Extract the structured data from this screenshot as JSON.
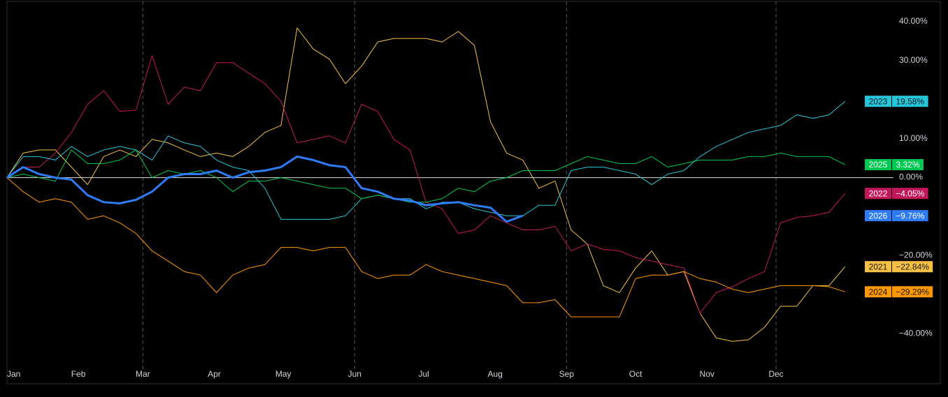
{
  "chart_data": {
    "type": "line",
    "x": [
      0,
      7,
      14,
      21,
      28,
      35,
      42,
      49,
      56,
      63,
      70,
      77,
      84,
      91,
      98,
      105,
      112,
      119,
      126,
      133,
      140,
      147,
      154,
      161,
      168,
      175,
      182,
      189,
      196,
      203,
      210,
      217,
      224,
      231,
      238,
      245,
      252,
      259,
      266,
      273,
      280,
      287,
      294,
      301,
      308,
      315,
      322,
      329,
      336,
      343,
      350,
      357,
      364
    ],
    "xlim": [
      0,
      385
    ],
    "xticks": [
      {
        "value": 0,
        "label": "Jan"
      },
      {
        "value": 31,
        "label": "Feb"
      },
      {
        "value": 59,
        "label": "Mar"
      },
      {
        "value": 90,
        "label": "Apr"
      },
      {
        "value": 120,
        "label": "May"
      },
      {
        "value": 151,
        "label": "Jun"
      },
      {
        "value": 181,
        "label": "Jul"
      },
      {
        "value": 212,
        "label": "Aug"
      },
      {
        "value": 243,
        "label": "Sep"
      },
      {
        "value": 273,
        "label": "Oct"
      },
      {
        "value": 304,
        "label": "Nov"
      },
      {
        "value": 334,
        "label": "Dec"
      }
    ],
    "ylim": [
      -47.5,
      45.2
    ],
    "yticks": [
      {
        "value": 40,
        "label": "40.00%"
      },
      {
        "value": 30,
        "label": "30.00%"
      },
      {
        "value": 10,
        "label": "10.00%"
      },
      {
        "value": 0,
        "label": "0.00%"
      },
      {
        "value": -20,
        "label": "−20.00%"
      },
      {
        "value": -40,
        "label": "−40.00%"
      }
    ],
    "series": [
      {
        "name": "2021",
        "color": "#f6c143",
        "end_value": -22.84,
        "end_label": "−22.84%",
        "values": [
          0,
          6.3,
          7.1,
          7.1,
          2.7,
          -1.8,
          5.4,
          7.1,
          5.4,
          9.8,
          8.9,
          7.1,
          5.4,
          6.3,
          5.4,
          8,
          11.6,
          13.4,
          38.4,
          33,
          30.4,
          24.1,
          28.6,
          34.8,
          35.7,
          35.7,
          35.7,
          34.8,
          37.5,
          33.9,
          14.3,
          6.3,
          4.5,
          -2.7,
          -0.9,
          -13.4,
          -17,
          -27.7,
          -29.5,
          -23.2,
          -18.8,
          -25,
          -24.1,
          -34.8,
          -41.1,
          -42,
          -41.6,
          -38.4,
          -33,
          -33,
          -27.7,
          -27.7,
          -22.84
        ]
      },
      {
        "name": "2022",
        "color": "#c2185b",
        "end_value": -4.05,
        "end_label": "−4.05%",
        "values": [
          0,
          2.7,
          2.7,
          6.3,
          11.6,
          18.8,
          22.3,
          17,
          17.3,
          31.3,
          18.8,
          23.2,
          22.3,
          29.5,
          29.5,
          26.8,
          24.1,
          19.6,
          8.9,
          9.8,
          10.7,
          8.9,
          18.8,
          17,
          9.8,
          7.1,
          -6.3,
          -8,
          -14.3,
          -13.4,
          -9.8,
          -11.6,
          -13.4,
          -13.4,
          -12.5,
          -18.8,
          -17,
          -18.4,
          -18.8,
          -20.5,
          -21.4,
          -22.3,
          -23.2,
          -34.8,
          -29.5,
          -28,
          -25.9,
          -24.1,
          -11.6,
          -10.2,
          -9.8,
          -8.9,
          -4.05
        ]
      },
      {
        "name": "2023",
        "color": "#26c6da",
        "end_value": 19.58,
        "end_label": "19.58%",
        "values": [
          0,
          5.4,
          5.4,
          4.5,
          8,
          5.4,
          7.1,
          8,
          7.1,
          4.5,
          10.7,
          8.9,
          8,
          4.5,
          2.7,
          1.8,
          -2.7,
          -10.7,
          -10.7,
          -10.7,
          -10.7,
          -9.8,
          -5.4,
          -4.5,
          -5.4,
          -5.4,
          -8,
          -6.3,
          -6.3,
          -8,
          -8.9,
          -9.8,
          -9.8,
          -7.1,
          -7.1,
          1.8,
          2.7,
          2.7,
          1.8,
          0.9,
          -1.8,
          0.9,
          1.8,
          5.4,
          8,
          9.8,
          11.6,
          12.5,
          13.4,
          16.1,
          15.2,
          16.1,
          19.58
        ]
      },
      {
        "name": "2024",
        "color": "#ff9800",
        "end_value": -29.29,
        "end_label": "−29.29%",
        "values": [
          0,
          -3.6,
          -6.3,
          -5.4,
          -6.3,
          -10.7,
          -9.8,
          -11.6,
          -14.3,
          -18.8,
          -21.4,
          -24.1,
          -25,
          -29.5,
          -25,
          -23.2,
          -22.3,
          -17.9,
          -17.9,
          -18.8,
          -17.9,
          -17.9,
          -24.1,
          -25.9,
          -25,
          -25,
          -22.3,
          -24.1,
          -25,
          -25.9,
          -26.8,
          -27.7,
          -32.1,
          -32.1,
          -31.3,
          -35.7,
          -35.7,
          -35.7,
          -35.7,
          -25.9,
          -25,
          -25,
          -24.1,
          -25.9,
          -26.8,
          -28.6,
          -29.5,
          -28.6,
          -27.7,
          -27.7,
          -27.7,
          -28,
          -29.29
        ]
      },
      {
        "name": "2025",
        "color": "#00c853",
        "end_value": 3.32,
        "end_label": "3.32%",
        "values": [
          0,
          0.9,
          0,
          -0.9,
          7.1,
          3.6,
          3.6,
          4.5,
          7.1,
          0,
          1.8,
          0.9,
          1.8,
          0,
          -3.6,
          -0.9,
          -0.9,
          0,
          -0.9,
          -1.8,
          -2.7,
          -2.7,
          -5.4,
          -4.5,
          -5.4,
          -6.3,
          -6.3,
          -5.4,
          -2.7,
          -3.6,
          -0.9,
          0,
          1.8,
          1.8,
          1.8,
          3.6,
          5.4,
          4.5,
          3.6,
          3.6,
          5.4,
          2.7,
          3.6,
          4.5,
          4.5,
          4.5,
          5.4,
          5.4,
          6.3,
          5.4,
          5.4,
          5.4,
          3.32
        ]
      },
      {
        "name": "2026",
        "color": "#2f7bf5",
        "end_value": -9.76,
        "end_label": "−9.76%",
        "values": [
          0,
          2.7,
          0.9,
          0,
          -0.5,
          -4.5,
          -6.3,
          -6.6,
          -5.7,
          -3.6,
          0,
          0.9,
          0.9,
          1.8,
          0,
          1.4,
          1.8,
          2.7,
          5.4,
          4.5,
          3.2,
          2.7,
          -2.7,
          -3.6,
          -5.4,
          -5.9,
          -7.1,
          -6.6,
          -6.3,
          -7.1,
          -7.7,
          -11.3,
          -9.76,
          null,
          null,
          null,
          null,
          null,
          null,
          null,
          null,
          null,
          null,
          null,
          null,
          null,
          null,
          null,
          null,
          null,
          null,
          null,
          null
        ]
      }
    ]
  }
}
